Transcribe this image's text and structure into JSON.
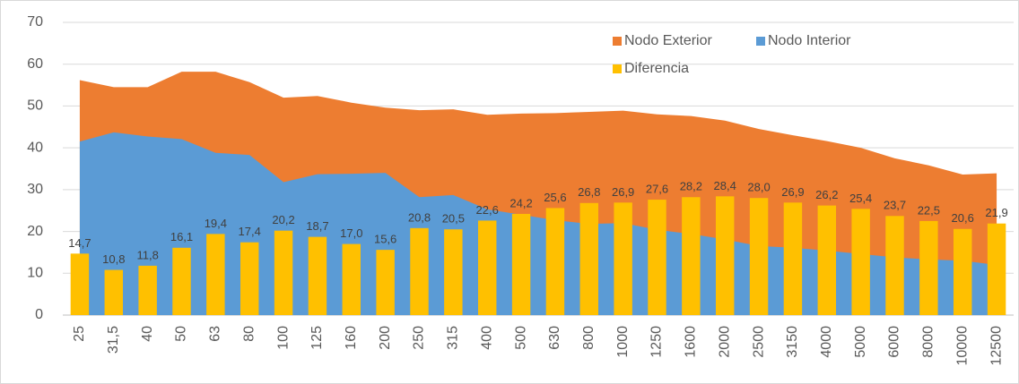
{
  "chart_data": {
    "type": "area",
    "categories": [
      "25",
      "31,5",
      "40",
      "50",
      "63",
      "80",
      "100",
      "125",
      "160",
      "200",
      "250",
      "315",
      "400",
      "500",
      "630",
      "800",
      "1000",
      "1250",
      "1600",
      "2000",
      "2500",
      "3150",
      "4000",
      "5000",
      "6000",
      "8000",
      "10000",
      "12500"
    ],
    "series": [
      {
        "name": "Nodo Exterior",
        "type": "area",
        "color": "#ed7d31",
        "values": [
          56.2,
          54.5,
          54.5,
          58.2,
          58.2,
          55.7,
          52.0,
          52.4,
          50.8,
          49.6,
          49.0,
          49.2,
          47.9,
          48.2,
          48.3,
          48.6,
          48.9,
          48.0,
          47.6,
          46.5,
          44.5,
          43.0,
          41.6,
          40.0,
          37.5,
          35.8,
          33.6,
          33.9
        ]
      },
      {
        "name": "Nodo Interior",
        "type": "area",
        "color": "#5b9bd5",
        "values": [
          41.5,
          43.7,
          42.7,
          42.1,
          38.8,
          38.3,
          31.8,
          33.7,
          33.8,
          34.0,
          28.2,
          28.7,
          25.3,
          24.0,
          22.7,
          21.8,
          22.0,
          20.4,
          19.4,
          18.1,
          16.5,
          16.1,
          15.4,
          14.6,
          13.8,
          13.3,
          13.0,
          12.0
        ]
      },
      {
        "name": "Diferencia",
        "type": "bar",
        "color": "#ffc000",
        "values": [
          14.7,
          10.8,
          11.8,
          16.1,
          19.4,
          17.4,
          20.2,
          18.7,
          17.0,
          15.6,
          20.8,
          20.5,
          22.6,
          24.2,
          25.6,
          26.8,
          26.9,
          27.6,
          28.2,
          28.4,
          28.0,
          26.9,
          26.2,
          25.4,
          23.7,
          22.5,
          20.6,
          21.9
        ],
        "value_labels": [
          "14,7",
          "10,8",
          "11,8",
          "16,1",
          "19,4",
          "17,4",
          "20,2",
          "18,7",
          "17,0",
          "15,6",
          "20,8",
          "20,5",
          "22,6",
          "24,2",
          "25,6",
          "26,8",
          "26,9",
          "27,6",
          "28,2",
          "28,4",
          "28,0",
          "26,9",
          "26,2",
          "25,4",
          "23,7",
          "22,5",
          "20,6",
          "21,9"
        ]
      }
    ],
    "ylim": [
      0,
      70
    ],
    "yticks": [
      0,
      10,
      20,
      30,
      40,
      50,
      60,
      70
    ],
    "grid": true
  }
}
